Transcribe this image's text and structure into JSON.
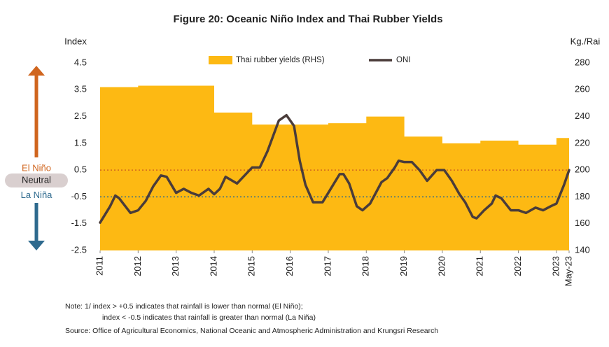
{
  "chart_data": {
    "type": "line",
    "title": "Figure 20: Oceanic Niño Index and Thai Rubber Yields",
    "y_axis_label": "Index",
    "y2_axis_label": "Kg./Rai",
    "xlim": [
      2011,
      2023.333
    ],
    "xticks": [
      2011,
      2012,
      2013,
      2014,
      2015,
      2016,
      2017,
      2018,
      2019,
      2020,
      2021,
      2022,
      2023,
      {
        "value": 2023.333,
        "label": "May-23"
      }
    ],
    "ylim": [
      -2.5,
      4.5
    ],
    "yticks": [
      4.5,
      3.5,
      2.5,
      1.5,
      0.5,
      -0.5,
      -1.5,
      -2.5
    ],
    "y2lim": [
      140,
      280
    ],
    "y2ticks": [
      280,
      260,
      240,
      220,
      200,
      180,
      160,
      140
    ],
    "grid": false,
    "legend": "top",
    "series": [
      {
        "name": "Thai rubber yields (RHS)",
        "type": "step-area",
        "axis": "y2",
        "color": "#FDB913",
        "x": [
          2011,
          2012,
          2013,
          2014,
          2015,
          2016,
          2017,
          2018,
          2019,
          2020,
          2021,
          2022,
          2023
        ],
        "values": [
          262,
          263,
          263,
          243,
          234,
          234,
          235,
          240,
          225,
          220,
          222,
          219,
          224
        ]
      },
      {
        "name": "ONI",
        "type": "line",
        "color": "#4a3c3a",
        "x": [
          2011.0,
          2011.26,
          2011.4,
          2011.5,
          2011.8,
          2012.0,
          2012.2,
          2012.4,
          2012.6,
          2012.75,
          2013.0,
          2013.2,
          2013.4,
          2013.6,
          2013.85,
          2014.0,
          2014.15,
          2014.3,
          2014.6,
          2015.0,
          2015.2,
          2015.4,
          2015.7,
          2015.9,
          2016.1,
          2016.25,
          2016.4,
          2016.6,
          2016.85,
          2017.0,
          2017.3,
          2017.4,
          2017.55,
          2017.75,
          2017.9,
          2018.1,
          2018.4,
          2018.55,
          2018.75,
          2018.85,
          2019.0,
          2019.2,
          2019.4,
          2019.6,
          2019.85,
          2020.05,
          2020.25,
          2020.45,
          2020.6,
          2020.8,
          2020.9,
          2021.1,
          2021.3,
          2021.4,
          2021.55,
          2021.8,
          2022.0,
          2022.2,
          2022.45,
          2022.65,
          2022.85,
          2023.0,
          2023.2,
          2023.333
        ],
        "values": [
          -1.46,
          -0.86,
          -0.45,
          -0.55,
          -1.1,
          -1.0,
          -0.65,
          -0.1,
          0.3,
          0.25,
          -0.35,
          -0.2,
          -0.35,
          -0.45,
          -0.2,
          -0.4,
          -0.2,
          0.25,
          0.0,
          0.6,
          0.6,
          1.2,
          2.35,
          2.55,
          2.15,
          0.85,
          -0.05,
          -0.7,
          -0.7,
          -0.35,
          0.35,
          0.35,
          0.0,
          -0.85,
          -1.0,
          -0.75,
          0.05,
          0.2,
          0.6,
          0.85,
          0.8,
          0.8,
          0.5,
          0.1,
          0.5,
          0.5,
          0.1,
          -0.4,
          -0.7,
          -1.25,
          -1.3,
          -1.0,
          -0.75,
          -0.45,
          -0.55,
          -1.0,
          -1.0,
          -1.1,
          -0.9,
          -1.0,
          -0.85,
          -0.75,
          -0.05,
          0.5
        ]
      }
    ],
    "thresholds": [
      {
        "value": 0.5,
        "label": "El Niño",
        "color": "#d0651e"
      },
      {
        "value": -0.5,
        "label": "La Niña",
        "color": "#2e6a8e"
      }
    ],
    "neutral_label": "Neutral",
    "notes": [
      "Note: 1/ index > +0.5 indicates that rainfall is lower than normal (El Niño);",
      "index < -0.5 indicates that rainfall is greater than normal (La Niña)"
    ],
    "source": "Source: Office of Agricultural Economics, National Oceanic and Atmospheric Administration and Krungsri Research"
  }
}
